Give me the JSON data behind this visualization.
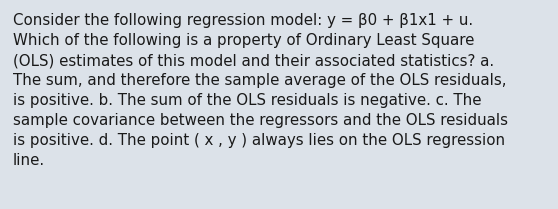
{
  "text": "Consider the following regression model: y = β0 + β1x1 + u.\nWhich of the following is a property of Ordinary Least Square\n(OLS) estimates of this model and their associated statistics? a.\nThe sum, and therefore the sample average of the OLS residuals,\nis positive. b. The sum of the OLS residuals is negative. c. The\nsample covariance between the regressors and the OLS residuals\nis positive. d. The point ( x , y ) always lies on the OLS regression\nline.",
  "bg_color": "#dce2e9",
  "text_color": "#1a1a1a",
  "font_size": 10.8,
  "fig_width": 5.58,
  "fig_height": 2.09,
  "linespacing": 1.42
}
